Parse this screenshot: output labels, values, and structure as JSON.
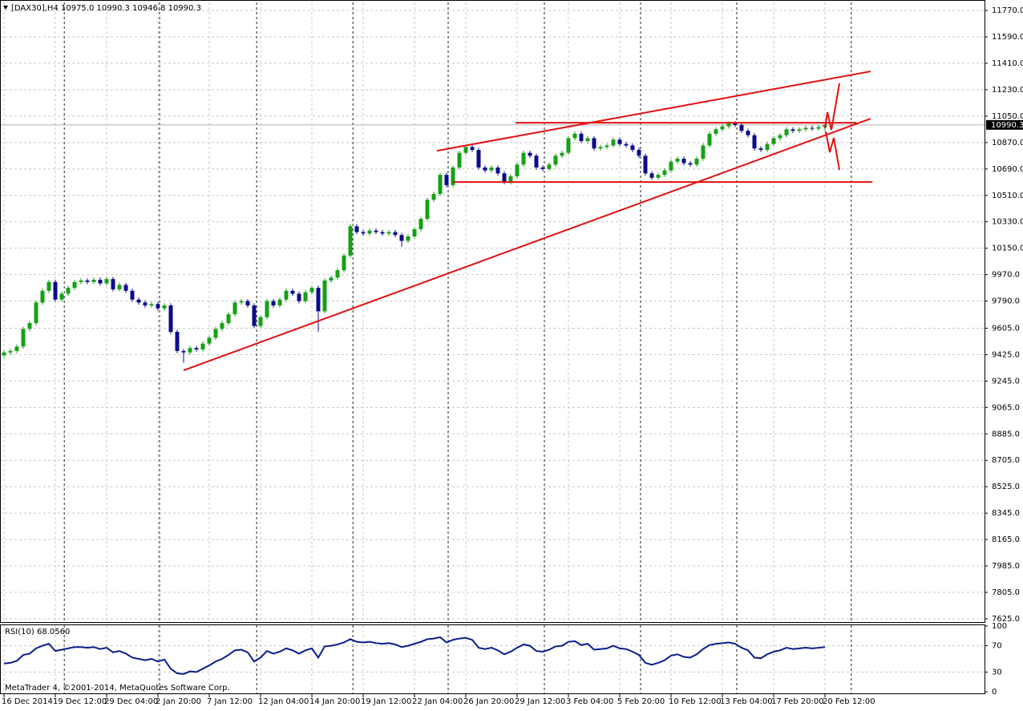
{
  "chart_data": {
    "type": "candlestick",
    "header": "[DAX30],H4  10975.0 10990.3 10946.8 10990.3",
    "footer": "MetaTrader 4, ©2001-2014, MetaQuotes Software Corp.",
    "categories": [
      "16 Dec 2014",
      null,
      null,
      null,
      null,
      null,
      null,
      null,
      "19 Dec 12:00",
      null,
      null,
      null,
      null,
      null,
      null,
      null,
      "29 Dec 04:00",
      null,
      null,
      null,
      null,
      null,
      null,
      null,
      "2 Jan 20:00",
      null,
      null,
      null,
      null,
      null,
      null,
      null,
      "7 Jan 12:00",
      null,
      null,
      null,
      null,
      null,
      null,
      null,
      "12 Jan 04:00",
      null,
      null,
      null,
      null,
      null,
      null,
      null,
      "14 Jan 20:00",
      null,
      null,
      null,
      null,
      null,
      null,
      null,
      "19 Jan 12:00",
      null,
      null,
      null,
      null,
      null,
      null,
      null,
      "22 Jan 04:00",
      null,
      null,
      null,
      null,
      null,
      null,
      null,
      "26 Jan 20:00",
      null,
      null,
      null,
      null,
      null,
      null,
      null,
      "29 Jan 12:00",
      null,
      null,
      null,
      null,
      null,
      null,
      null,
      "3 Feb 04:00",
      null,
      null,
      null,
      null,
      null,
      null,
      null,
      "5 Feb 20:00",
      null,
      null,
      null,
      null,
      null,
      null,
      null,
      "10 Feb 12:00",
      null,
      null,
      null,
      null,
      null,
      null,
      null,
      "13 Feb 04:00",
      null,
      null,
      null,
      null,
      null,
      null,
      null,
      "17 Feb 20:00",
      null,
      null,
      null,
      null,
      null,
      null,
      null,
      "20 Feb 12:00"
    ],
    "open": [
      9420,
      9440,
      9450,
      9480,
      9600,
      9640,
      9780,
      9860,
      9920,
      9800,
      9840,
      9880,
      9920,
      9930,
      9920,
      9935,
      9910,
      9940,
      9870,
      9900,
      9860,
      9800,
      9780,
      9760,
      9770,
      9740,
      9760,
      9580,
      9450,
      9440,
      9470,
      9460,
      9500,
      9540,
      9600,
      9640,
      9700,
      9780,
      9790,
      9760,
      9620,
      9680,
      9790,
      9760,
      9800,
      9860,
      9840,
      9790,
      9850,
      9880,
      9720,
      9930,
      9950,
      10000,
      10100,
      10300,
      10260,
      10250,
      10270,
      10260,
      10250,
      10260,
      10240,
      10200,
      10230,
      10280,
      10350,
      10480,
      10520,
      10650,
      10580,
      10700,
      10800,
      10840,
      10820,
      10700,
      10680,
      10700,
      10660,
      10600,
      10640,
      10720,
      10800,
      10780,
      10700,
      10690,
      10720,
      10780,
      10800,
      10900,
      10930,
      10880,
      10900,
      10830,
      10840,
      10850,
      10890,
      10860,
      10850,
      10820,
      10780,
      10660,
      10630,
      10650,
      10680,
      10740,
      10760,
      10730,
      10720,
      10760,
      10850,
      10930,
      10960,
      10980,
      11000,
      10990,
      10950,
      10920,
      10830,
      10820,
      10860,
      10900,
      10920,
      10960,
      10950,
      10960,
      10970,
      10965,
      10975
    ],
    "high": [
      9455,
      9465,
      9495,
      9615,
      9655,
      9795,
      9875,
      9935,
      9935,
      9855,
      9895,
      9935,
      9945,
      9945,
      9950,
      9950,
      9955,
      9955,
      9915,
      9915,
      9875,
      9815,
      9795,
      9785,
      9785,
      9775,
      9775,
      9595,
      9465,
      9485,
      9485,
      9515,
      9555,
      9615,
      9655,
      9715,
      9795,
      9805,
      9805,
      9775,
      9695,
      9805,
      9805,
      9815,
      9875,
      9875,
      9855,
      9865,
      9895,
      9895,
      9945,
      9965,
      10015,
      10115,
      10315,
      10315,
      10275,
      10285,
      10285,
      10275,
      10275,
      10275,
      10255,
      10245,
      10295,
      10365,
      10495,
      10535,
      10665,
      10665,
      10715,
      10815,
      10855,
      10855,
      10835,
      10715,
      10715,
      10715,
      10675,
      10655,
      10735,
      10815,
      10815,
      10795,
      10715,
      10735,
      10795,
      10815,
      10915,
      10945,
      10945,
      10915,
      10915,
      10855,
      10865,
      10905,
      10905,
      10875,
      10865,
      10835,
      10795,
      10675,
      10665,
      10695,
      10755,
      10775,
      10775,
      10745,
      10775,
      10865,
      10945,
      10975,
      10995,
      11015,
      11015,
      11005,
      10965,
      10935,
      10845,
      10875,
      10915,
      10935,
      10975,
      10975,
      10975,
      10985,
      10985,
      10990,
      10990.3
    ],
    "low": [
      9405,
      9425,
      9435,
      9465,
      9585,
      9625,
      9765,
      9845,
      9785,
      9785,
      9825,
      9865,
      9905,
      9905,
      9905,
      9895,
      9895,
      9855,
      9855,
      9845,
      9785,
      9765,
      9745,
      9745,
      9725,
      9725,
      9565,
      9435,
      9370,
      9425,
      9445,
      9445,
      9485,
      9525,
      9585,
      9625,
      9685,
      9765,
      9745,
      9605,
      9605,
      9665,
      9745,
      9745,
      9785,
      9825,
      9775,
      9775,
      9835,
      9580,
      9705,
      9915,
      9935,
      9985,
      10085,
      10245,
      10235,
      10235,
      10245,
      10235,
      10235,
      10225,
      10160,
      10185,
      10215,
      10265,
      10335,
      10465,
      10505,
      10565,
      10565,
      10685,
      10785,
      10805,
      10685,
      10665,
      10665,
      10645,
      10585,
      10585,
      10625,
      10705,
      10765,
      10685,
      10675,
      10675,
      10705,
      10765,
      10785,
      10885,
      10865,
      10865,
      10815,
      10815,
      10825,
      10835,
      10845,
      10835,
      10805,
      10765,
      10645,
      10615,
      10615,
      10635,
      10665,
      10725,
      10715,
      10705,
      10705,
      10745,
      10835,
      10915,
      10945,
      10965,
      10975,
      10935,
      10905,
      10815,
      10805,
      10805,
      10845,
      10885,
      10905,
      10935,
      10935,
      10945,
      10950,
      10950,
      10946.8
    ],
    "close": [
      9440,
      9450,
      9480,
      9600,
      9640,
      9780,
      9860,
      9920,
      9800,
      9840,
      9880,
      9920,
      9930,
      9920,
      9935,
      9910,
      9940,
      9870,
      9900,
      9860,
      9800,
      9780,
      9760,
      9770,
      9740,
      9760,
      9580,
      9450,
      9440,
      9470,
      9460,
      9500,
      9540,
      9600,
      9640,
      9700,
      9780,
      9790,
      9760,
      9620,
      9680,
      9790,
      9760,
      9800,
      9860,
      9840,
      9790,
      9850,
      9880,
      9720,
      9930,
      9950,
      10000,
      10100,
      10300,
      10260,
      10250,
      10270,
      10260,
      10250,
      10260,
      10240,
      10200,
      10230,
      10280,
      10350,
      10480,
      10520,
      10650,
      10580,
      10700,
      10800,
      10840,
      10820,
      10700,
      10680,
      10700,
      10660,
      10600,
      10640,
      10720,
      10800,
      10780,
      10700,
      10690,
      10720,
      10780,
      10800,
      10900,
      10930,
      10880,
      10900,
      10830,
      10840,
      10850,
      10890,
      10860,
      10850,
      10820,
      10780,
      10660,
      10630,
      10650,
      10680,
      10740,
      10760,
      10730,
      10720,
      10760,
      10850,
      10930,
      10960,
      10980,
      11000,
      10990,
      10950,
      10920,
      10830,
      10820,
      10860,
      10900,
      10920,
      10960,
      10950,
      10960,
      10970,
      10965,
      10975,
      10990.3
    ],
    "up_color": "#16a016",
    "down_color": "#0b0b8c",
    "ylim": [
      7603,
      11825
    ],
    "yticks": [
      {
        "value": 11770,
        "label": "11770.0"
      },
      {
        "value": 11590,
        "label": "11590.0"
      },
      {
        "value": 11410,
        "label": "11410.0"
      },
      {
        "value": 11230,
        "label": "11230.0"
      },
      {
        "value": 11050,
        "label": "11050.0"
      },
      {
        "value": 10870,
        "label": "10870.0"
      },
      {
        "value": 10690,
        "label": "10690.0"
      },
      {
        "value": 10510,
        "label": "10510.0"
      },
      {
        "value": 10330,
        "label": "10330.0"
      },
      {
        "value": 10150,
        "label": "10150.0"
      },
      {
        "value": 9970,
        "label": "9970.0"
      },
      {
        "value": 9790,
        "label": "9790.0"
      },
      {
        "value": 9605,
        "label": "9605.0"
      },
      {
        "value": 9425,
        "label": "9425.0"
      },
      {
        "value": 9245,
        "label": "9245.0"
      },
      {
        "value": 9065,
        "label": "9065.0"
      },
      {
        "value": 8885,
        "label": "8885.0"
      },
      {
        "value": 8705,
        "label": "8705.0"
      },
      {
        "value": 8525,
        "label": "8525.0"
      },
      {
        "value": 8345,
        "label": "8345.0"
      },
      {
        "value": 8165,
        "label": "8165.0"
      },
      {
        "value": 7985,
        "label": "7985.0"
      },
      {
        "value": 7805,
        "label": "7805.0"
      },
      {
        "value": 7625,
        "label": "7625.0"
      }
    ],
    "grid": true,
    "separators": [
      9.4,
      24.25,
      39.4,
      54.4,
      69.25,
      84.25,
      99.25,
      114.25,
      132.1
    ],
    "trendline_color": "#e01010",
    "trendlines": [
      {
        "x": [
          28,
          135.1
        ],
        "y": [
          9318,
          11033
        ]
      },
      {
        "x": [
          67.5,
          135.1
        ],
        "y": [
          10814,
          11355
        ]
      },
      {
        "x": [
          79.75,
          132.9
        ],
        "y": [
          11005,
          11005
        ]
      },
      {
        "x": [
          70,
          135.4
        ],
        "y": [
          10601,
          10601
        ]
      }
    ],
    "indicator": {
      "label": "RSI(10) 68.0560",
      "color": "#0a1e8c",
      "ylim": [
        0,
        100
      ],
      "yticks": [
        100,
        70,
        30,
        0
      ],
      "values": [
        43,
        44,
        47,
        56,
        58,
        66,
        70,
        73,
        62,
        64,
        66,
        68,
        68,
        67,
        68,
        65,
        67,
        60,
        62,
        58,
        52,
        50,
        48,
        50,
        46,
        49,
        35,
        28,
        27,
        31,
        30,
        35,
        40,
        46,
        50,
        56,
        63,
        64,
        60,
        46,
        52,
        62,
        58,
        61,
        66,
        63,
        58,
        63,
        66,
        52,
        69,
        70,
        72,
        75,
        80,
        76,
        75,
        76,
        74,
        73,
        74,
        72,
        68,
        70,
        73,
        76,
        80,
        81,
        83,
        75,
        79,
        81,
        82,
        79,
        67,
        65,
        67,
        63,
        57,
        61,
        67,
        72,
        70,
        62,
        61,
        64,
        69,
        70,
        76,
        77,
        71,
        73,
        64,
        65,
        66,
        70,
        66,
        65,
        61,
        56,
        44,
        41,
        44,
        48,
        55,
        57,
        53,
        52,
        57,
        65,
        71,
        73,
        74,
        75,
        73,
        67,
        63,
        52,
        51,
        57,
        61,
        63,
        67,
        65,
        66,
        67,
        66,
        67,
        68.056
      ]
    }
  }
}
